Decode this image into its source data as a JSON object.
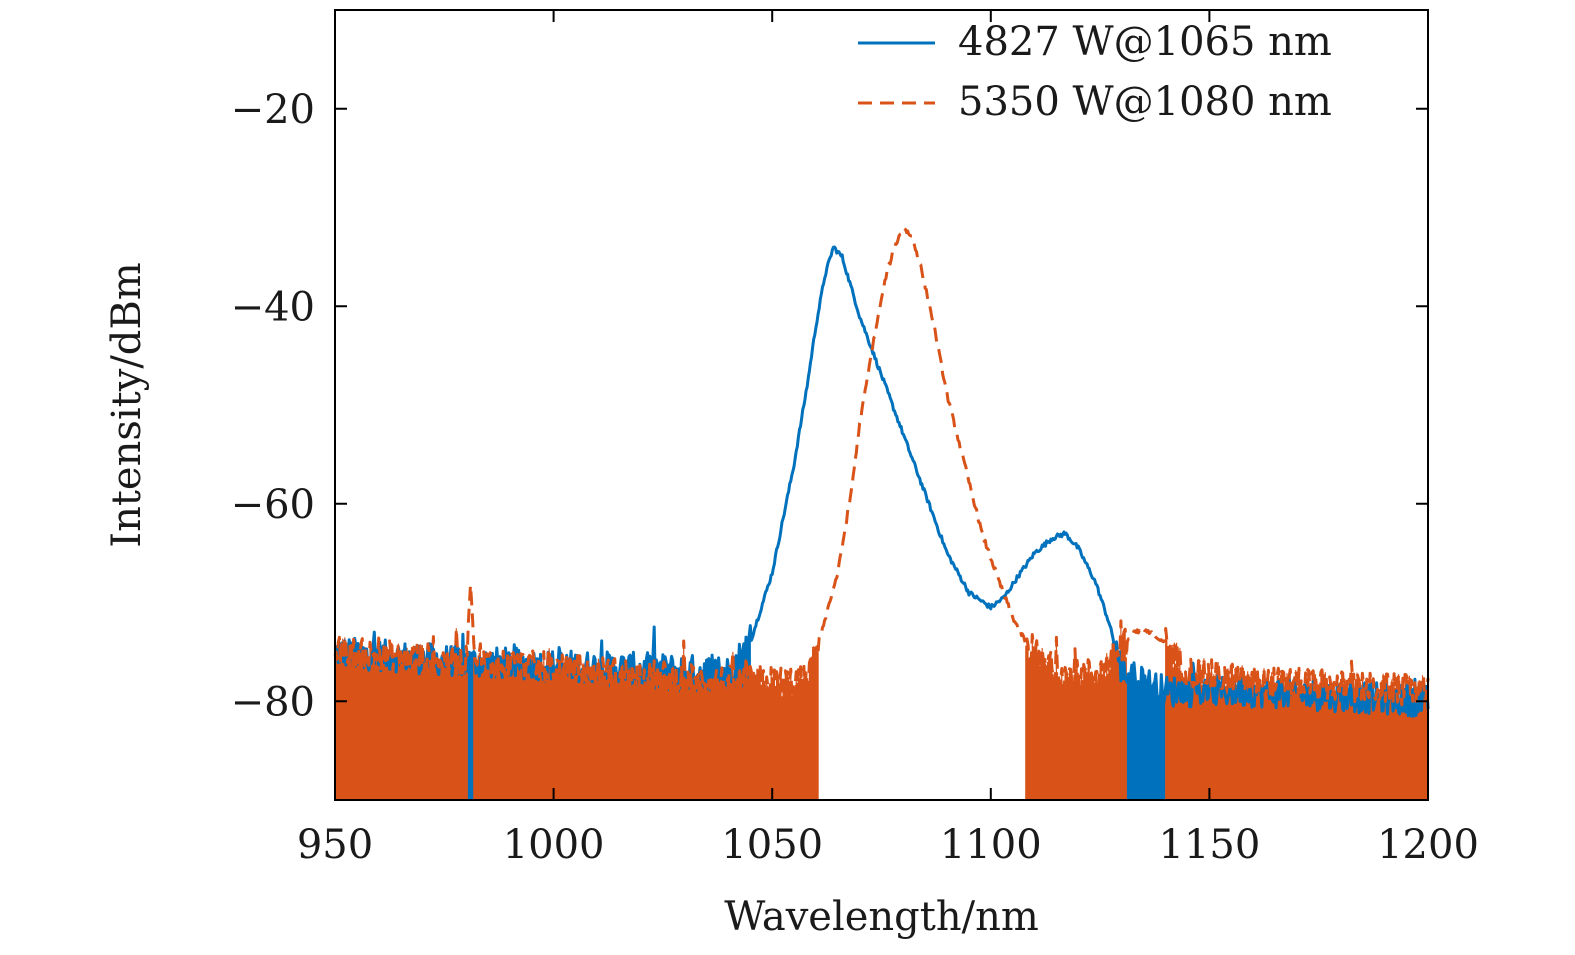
{
  "chart_data": {
    "type": "line",
    "xlabel": "Wavelength/nm",
    "ylabel": "Intensity/dBm",
    "xlim": [
      950,
      1200
    ],
    "ylim": [
      -90,
      -10
    ],
    "xticks": [
      950,
      1000,
      1050,
      1100,
      1150,
      1200
    ],
    "yticks": [
      -20,
      -40,
      -60,
      -80
    ],
    "xtick_labels": [
      "950",
      "1000",
      "1050",
      "1100",
      "1150",
      "1200"
    ],
    "ytick_labels": [
      "−20",
      "−40",
      "−60",
      "−80"
    ],
    "grid": false,
    "legend_position": "top-right",
    "series": [
      {
        "name": "4827 W@1065 nm",
        "color": "#0072BD",
        "style": "solid",
        "noise_floor": -78,
        "x": [
          950,
          980,
          1010,
          1040,
          1045,
          1050,
          1055,
          1058,
          1060,
          1062,
          1064,
          1066,
          1068,
          1070,
          1075,
          1080,
          1085,
          1090,
          1095,
          1100,
          1103,
          1106,
          1110,
          1114,
          1117,
          1120,
          1124,
          1127,
          1130,
          1140,
          1160,
          1180,
          1200
        ],
        "y": [
          -75,
          -76,
          -76.5,
          -77,
          -74,
          -67,
          -56,
          -48,
          -42,
          -37,
          -34,
          -35,
          -38,
          -41,
          -47,
          -53,
          -59,
          -65,
          -69,
          -70.5,
          -69.5,
          -67.5,
          -65,
          -63.5,
          -63,
          -64.5,
          -68,
          -72,
          -77,
          -79,
          -79,
          -79.5,
          -80
        ]
      },
      {
        "name": "5350 W@1080 nm",
        "color": "#D95319",
        "style": "dashed",
        "noise_floor": -78,
        "x": [
          950,
          980,
          981,
          982,
          1010,
          1040,
          1058,
          1060,
          1065,
          1068,
          1070,
          1073,
          1076,
          1078,
          1080,
          1082,
          1084,
          1087,
          1090,
          1094,
          1098,
          1102,
          1105,
          1108,
          1112,
          1118,
          1125,
          1130,
          1133,
          1136,
          1140,
          1145,
          1160,
          1200
        ],
        "y": [
          -75,
          -76,
          -68,
          -76,
          -77,
          -78,
          -78,
          -75,
          -67,
          -59,
          -52,
          -44,
          -37,
          -34,
          -32,
          -33,
          -36,
          -42,
          -49,
          -56,
          -63,
          -68,
          -71.5,
          -74,
          -76,
          -77.5,
          -77,
          -74.5,
          -73,
          -73,
          -74,
          -77,
          -78,
          -79
        ]
      }
    ]
  }
}
